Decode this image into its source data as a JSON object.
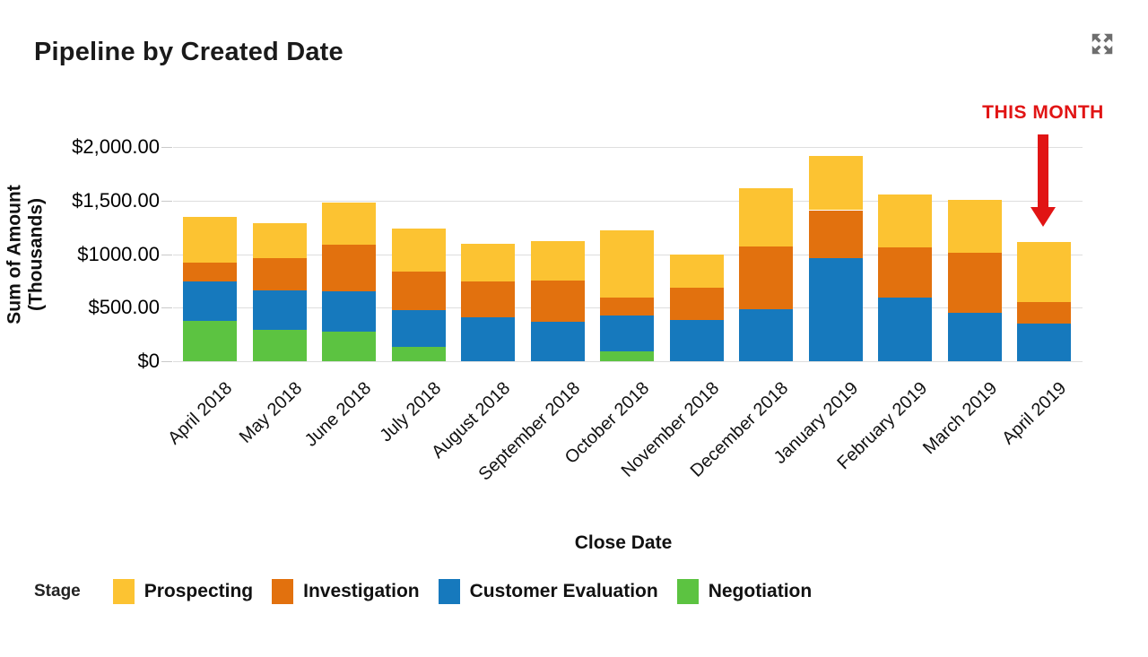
{
  "header": {
    "title": "Pipeline by Created Date",
    "expand_icon": "expand-arrows-icon",
    "icon_color": "#6e6e6e"
  },
  "annotation": {
    "label": "THIS MONTH",
    "color": "#e11414",
    "points_to": "April 2019"
  },
  "chart_data": {
    "type": "bar",
    "stacked": true,
    "title": "Pipeline by Created Date",
    "xlabel": "Close Date",
    "ylabel": "Sum of Amount (Thousands)",
    "ylim": [
      0,
      2000
    ],
    "grid": true,
    "legend_title": "Stage",
    "legend_position": "bottom",
    "y_ticks": [
      {
        "value": 0,
        "label": "$0"
      },
      {
        "value": 500,
        "label": "$500.00"
      },
      {
        "value": 1000,
        "label": "$1000.00"
      },
      {
        "value": 1500,
        "label": "$1,500.00"
      },
      {
        "value": 2000,
        "label": "$2,000.00"
      }
    ],
    "categories": [
      "April 2018",
      "May 2018",
      "June 2018",
      "July 2018",
      "August 2018",
      "September 2018",
      "October 2018",
      "November 2018",
      "December 2018",
      "January 2019",
      "February 2019",
      "March 2019",
      "April 2019"
    ],
    "series": [
      {
        "name": "Prospecting",
        "color": "#fcc332",
        "values": [
          430,
          325,
          400,
          395,
          350,
          370,
          625,
          310,
          545,
          510,
          500,
          495,
          560
        ]
      },
      {
        "name": "Investigation",
        "color": "#e2710e",
        "values": [
          175,
          300,
          435,
          360,
          335,
          385,
          170,
          300,
          585,
          450,
          470,
          560,
          195
        ]
      },
      {
        "name": "Customer Evaluation",
        "color": "#1679bd",
        "values": [
          365,
          370,
          375,
          345,
          410,
          370,
          335,
          385,
          485,
          960,
          590,
          450,
          355
        ]
      },
      {
        "name": "Negotiation",
        "color": "#5cc341",
        "values": [
          380,
          295,
          275,
          135,
          0,
          0,
          90,
          0,
          0,
          0,
          0,
          0,
          0
        ]
      }
    ],
    "totals": [
      1350,
      1290,
      1485,
      1235,
      1095,
      1125,
      1220,
      995,
      1615,
      1920,
      1560,
      1505,
      1110
    ]
  }
}
